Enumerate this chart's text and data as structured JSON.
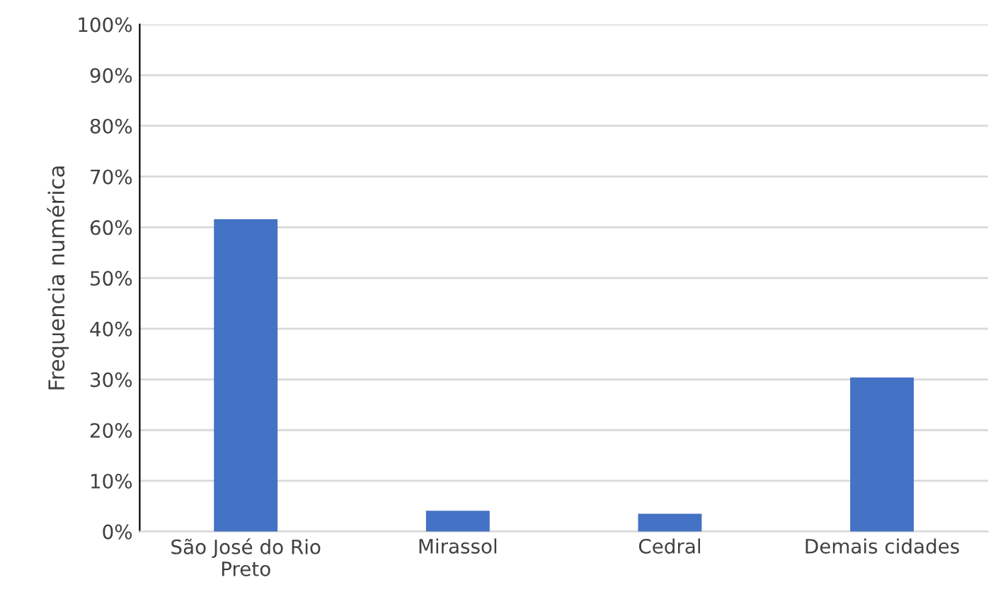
{
  "chart_data": {
    "type": "bar",
    "ylabel": "Frequencia numérica",
    "categories": [
      "São José do Rio\nPreto",
      "Mirassol",
      "Cedral",
      "Demais cidades"
    ],
    "values": [
      61.6,
      4.1,
      3.5,
      30.4
    ],
    "color": "#4472c4",
    "ylim": [
      0,
      100
    ],
    "yticks": [
      {
        "value": 0,
        "label": "0%"
      },
      {
        "value": 10,
        "label": "10%"
      },
      {
        "value": 20,
        "label": "20%"
      },
      {
        "value": 30,
        "label": "30%"
      },
      {
        "value": 40,
        "label": "40%"
      },
      {
        "value": 50,
        "label": "50%"
      },
      {
        "value": 60,
        "label": "60%"
      },
      {
        "value": 70,
        "label": "70%"
      },
      {
        "value": 80,
        "label": "80%"
      },
      {
        "value": 90,
        "label": "90%"
      },
      {
        "value": 100,
        "label": "100%"
      }
    ],
    "grid": "y",
    "legend": false
  }
}
